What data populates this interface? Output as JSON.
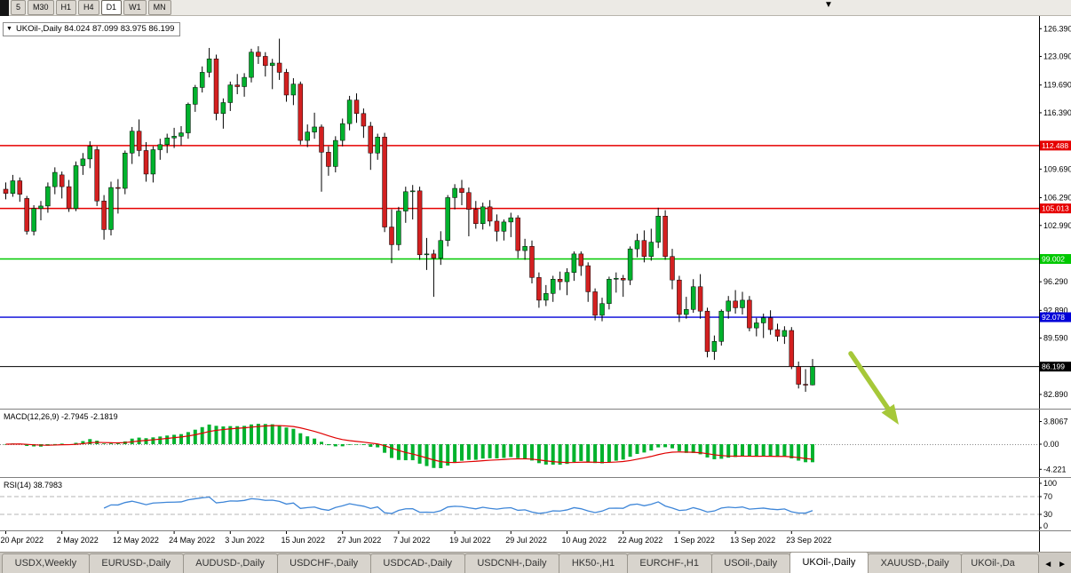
{
  "toolbar": {
    "timeframes": [
      "5",
      "M30",
      "H1",
      "H4",
      "D1",
      "W1",
      "MN"
    ],
    "active_timeframe": "D1",
    "overflow_caret": "▼"
  },
  "chart_header": {
    "caret": "▼",
    "text": "UKOil-,Daily 84.024 87.099 83.975 86.199"
  },
  "chart_data": {
    "type": "candlestick",
    "title": "UKOil-,Daily",
    "ohlc_display": {
      "open": "84.024",
      "high": "87.099",
      "low": "83.975",
      "close": "86.199"
    },
    "price_range": {
      "min": 81.2,
      "max": 127.9
    },
    "y_ticks": [
      126.39,
      123.09,
      119.69,
      116.39,
      109.69,
      106.29,
      102.99,
      96.29,
      92.89,
      89.59,
      82.89
    ],
    "hlines": [
      {
        "price": 112.488,
        "label": "112.488",
        "color": "#E60000"
      },
      {
        "price": 105.013,
        "label": "105.013",
        "color": "#E60000"
      },
      {
        "price": 99.002,
        "label": "99.002",
        "color": "#00C800"
      },
      {
        "price": 92.078,
        "label": "92.078",
        "color": "#0000D8"
      },
      {
        "price": 86.199,
        "label": "86.199",
        "color": "#000000"
      }
    ],
    "x_labels": [
      {
        "label": "20 Apr 2022",
        "index": 0
      },
      {
        "label": "2 May 2022",
        "index": 8
      },
      {
        "label": "12 May 2022",
        "index": 16
      },
      {
        "label": "24 May 2022",
        "index": 24
      },
      {
        "label": "3 Jun 2022",
        "index": 32
      },
      {
        "label": "15 Jun 2022",
        "index": 40
      },
      {
        "label": "27 Jun 2022",
        "index": 48
      },
      {
        "label": "7 Jul 2022",
        "index": 56
      },
      {
        "label": "19 Jul 2022",
        "index": 64
      },
      {
        "label": "29 Jul 2022",
        "index": 72
      },
      {
        "label": "10 Aug 2022",
        "index": 80
      },
      {
        "label": "22 Aug 2022",
        "index": 88
      },
      {
        "label": "1 Sep 2022",
        "index": 96
      },
      {
        "label": "13 Sep 2022",
        "index": 104
      },
      {
        "label": "23 Sep 2022",
        "index": 112
      }
    ],
    "candles": [
      [
        107.3,
        108.1,
        106.1,
        106.8
      ],
      [
        106.8,
        109.0,
        106.4,
        108.3
      ],
      [
        108.3,
        108.7,
        105.8,
        106.7
      ],
      [
        106.2,
        106.5,
        101.9,
        102.3
      ],
      [
        102.3,
        105.4,
        101.8,
        105.0
      ],
      [
        105.0,
        105.9,
        103.6,
        105.3
      ],
      [
        105.3,
        108.1,
        104.5,
        107.6
      ],
      [
        107.6,
        109.9,
        106.7,
        109.3
      ],
      [
        109.0,
        109.4,
        106.2,
        107.6
      ],
      [
        107.6,
        108.4,
        104.6,
        105.0
      ],
      [
        105.0,
        110.6,
        104.7,
        110.1
      ],
      [
        110.1,
        111.6,
        109.0,
        110.9
      ],
      [
        110.9,
        113.0,
        109.8,
        112.4
      ],
      [
        112.0,
        112.4,
        105.3,
        105.9
      ],
      [
        105.9,
        106.6,
        101.3,
        102.5
      ],
      [
        102.5,
        108.2,
        101.8,
        107.5
      ],
      [
        107.5,
        108.5,
        104.4,
        107.4
      ],
      [
        107.4,
        111.9,
        106.7,
        111.6
      ],
      [
        111.6,
        114.7,
        110.3,
        114.2
      ],
      [
        114.2,
        115.6,
        111.2,
        111.9
      ],
      [
        111.9,
        112.9,
        108.2,
        109.1
      ],
      [
        109.1,
        112.4,
        108.1,
        112.0
      ],
      [
        112.0,
        113.3,
        110.8,
        112.6
      ],
      [
        112.6,
        113.9,
        111.6,
        113.4
      ],
      [
        113.4,
        114.6,
        112.2,
        113.6
      ],
      [
        113.6,
        114.8,
        112.5,
        114.0
      ],
      [
        114.0,
        117.6,
        113.3,
        117.4
      ],
      [
        117.4,
        119.7,
        116.5,
        119.4
      ],
      [
        119.4,
        121.9,
        118.8,
        121.2
      ],
      [
        121.2,
        124.1,
        120.6,
        122.8
      ],
      [
        122.8,
        123.3,
        115.5,
        116.3
      ],
      [
        116.3,
        118.1,
        114.5,
        117.6
      ],
      [
        117.6,
        120.1,
        116.6,
        119.7
      ],
      [
        119.7,
        121.0,
        118.6,
        119.5
      ],
      [
        119.5,
        121.1,
        118.3,
        120.6
      ],
      [
        120.6,
        124.0,
        120.0,
        123.6
      ],
      [
        123.6,
        124.3,
        122.2,
        123.1
      ],
      [
        123.1,
        123.6,
        120.7,
        122.0
      ],
      [
        122.0,
        122.8,
        119.2,
        122.3
      ],
      [
        122.3,
        125.2,
        120.3,
        121.2
      ],
      [
        121.2,
        121.6,
        117.7,
        118.5
      ],
      [
        118.5,
        120.5,
        117.3,
        119.8
      ],
      [
        119.8,
        120.1,
        112.6,
        113.1
      ],
      [
        113.1,
        115.0,
        112.3,
        114.1
      ],
      [
        114.1,
        116.4,
        113.3,
        114.7
      ],
      [
        114.7,
        115.0,
        107.0,
        111.7
      ],
      [
        111.7,
        112.4,
        108.9,
        110.0
      ],
      [
        110.0,
        113.6,
        109.3,
        113.1
      ],
      [
        113.1,
        115.7,
        112.4,
        115.1
      ],
      [
        115.1,
        118.4,
        114.3,
        117.9
      ],
      [
        117.9,
        118.7,
        115.2,
        116.3
      ],
      [
        116.3,
        116.9,
        113.4,
        114.8
      ],
      [
        114.8,
        115.3,
        109.6,
        111.6
      ],
      [
        111.6,
        113.9,
        110.8,
        113.5
      ],
      [
        113.5,
        114.0,
        102.2,
        102.8
      ],
      [
        102.8,
        104.9,
        98.5,
        100.7
      ],
      [
        100.7,
        105.2,
        100.0,
        104.7
      ],
      [
        104.7,
        107.6,
        103.3,
        107.0
      ],
      [
        107.0,
        107.8,
        103.7,
        107.1
      ],
      [
        107.1,
        107.6,
        98.9,
        99.5
      ],
      [
        99.5,
        101.5,
        97.7,
        99.6
      ],
      [
        99.6,
        100.1,
        94.5,
        99.1
      ],
      [
        99.1,
        102.3,
        98.3,
        101.2
      ],
      [
        101.2,
        106.6,
        100.5,
        106.3
      ],
      [
        106.3,
        107.9,
        104.9,
        107.4
      ],
      [
        107.4,
        108.4,
        105.4,
        106.9
      ],
      [
        106.9,
        107.5,
        101.7,
        104.9
      ],
      [
        104.9,
        105.9,
        102.6,
        103.2
      ],
      [
        103.2,
        105.7,
        102.5,
        105.2
      ],
      [
        105.2,
        106.0,
        102.9,
        103.5
      ],
      [
        103.5,
        104.3,
        101.1,
        102.3
      ],
      [
        102.3,
        103.7,
        101.2,
        103.4
      ],
      [
        103.4,
        104.5,
        101.6,
        103.9
      ],
      [
        103.9,
        104.2,
        99.1,
        100.0
      ],
      [
        100.0,
        101.4,
        98.9,
        100.5
      ],
      [
        100.5,
        101.2,
        96.1,
        96.8
      ],
      [
        96.8,
        97.4,
        93.2,
        94.1
      ],
      [
        94.1,
        95.9,
        93.4,
        94.9
      ],
      [
        94.9,
        97.0,
        93.9,
        96.6
      ],
      [
        96.6,
        97.5,
        95.3,
        96.3
      ],
      [
        96.3,
        97.9,
        94.7,
        97.4
      ],
      [
        97.4,
        99.9,
        96.4,
        99.6
      ],
      [
        99.6,
        99.9,
        97.0,
        98.2
      ],
      [
        98.2,
        98.6,
        93.9,
        95.1
      ],
      [
        95.1,
        95.5,
        91.7,
        92.3
      ],
      [
        92.3,
        94.4,
        91.6,
        93.7
      ],
      [
        93.7,
        96.9,
        93.0,
        96.6
      ],
      [
        96.6,
        97.4,
        95.0,
        96.7
      ],
      [
        96.7,
        97.1,
        94.5,
        96.5
      ],
      [
        96.5,
        100.5,
        95.9,
        100.2
      ],
      [
        100.2,
        102.0,
        99.2,
        101.2
      ],
      [
        101.2,
        102.4,
        98.6,
        99.3
      ],
      [
        99.3,
        102.6,
        98.8,
        101.0
      ],
      [
        101.0,
        105.1,
        100.3,
        104.1
      ],
      [
        104.1,
        104.8,
        98.9,
        99.3
      ],
      [
        99.3,
        100.2,
        95.4,
        96.5
      ],
      [
        96.5,
        97.0,
        91.5,
        92.4
      ],
      [
        92.4,
        94.5,
        91.9,
        93.0
      ],
      [
        93.0,
        96.6,
        92.6,
        95.7
      ],
      [
        95.7,
        97.2,
        91.9,
        92.8
      ],
      [
        92.8,
        93.2,
        87.3,
        88.0
      ],
      [
        88.0,
        89.9,
        87.0,
        89.2
      ],
      [
        89.2,
        93.0,
        88.7,
        92.8
      ],
      [
        92.8,
        94.6,
        91.9,
        94.0
      ],
      [
        94.0,
        95.3,
        92.5,
        93.2
      ],
      [
        93.2,
        95.1,
        92.4,
        94.1
      ],
      [
        94.1,
        94.6,
        90.4,
        90.8
      ],
      [
        90.8,
        92.0,
        89.8,
        91.4
      ],
      [
        91.4,
        92.5,
        89.6,
        92.0
      ],
      [
        92.0,
        92.9,
        90.0,
        90.6
      ],
      [
        90.6,
        91.3,
        89.2,
        89.8
      ],
      [
        89.8,
        91.0,
        88.9,
        90.5
      ],
      [
        90.5,
        90.9,
        85.9,
        86.2
      ],
      [
        86.2,
        86.8,
        83.6,
        84.1
      ],
      [
        84.1,
        85.9,
        83.2,
        84.0
      ],
      [
        84.024,
        87.099,
        83.975,
        86.199
      ]
    ],
    "colors": {
      "up": "#00B22D",
      "down": "#D32020",
      "wick": "#000000",
      "macd_hist": "#00B22D",
      "macd_signal": "#E00000",
      "rsi_line": "#3E86D8",
      "arrow": "#A6C839"
    }
  },
  "macd": {
    "label": "MACD(12,26,9) -2.7945 -2.1819",
    "values_text": [
      "-2.7945",
      "-2.1819"
    ],
    "axis_labels": [
      {
        "text": "3.8067",
        "value": 3.8067
      },
      {
        "text": "0.00",
        "value": 0
      },
      {
        "text": "-4.221",
        "value": -4.221
      }
    ]
  },
  "rsi": {
    "label": "RSI(14) 38.7983",
    "value_text": "38.7983",
    "levels": [
      70,
      30
    ],
    "axis_labels": [
      {
        "text": "100",
        "value": 100
      },
      {
        "text": "70",
        "value": 70
      },
      {
        "text": "30",
        "value": 30
      },
      {
        "text": "0",
        "value": 0
      }
    ]
  },
  "tabs": {
    "items": [
      {
        "label": "USDX,Weekly",
        "active": false
      },
      {
        "label": "EURUSD-,Daily",
        "active": false
      },
      {
        "label": "AUDUSD-,Daily",
        "active": false
      },
      {
        "label": "USDCHF-,Daily",
        "active": false
      },
      {
        "label": "USDCAD-,Daily",
        "active": false
      },
      {
        "label": "USDCNH-,Daily",
        "active": false
      },
      {
        "label": "HK50-,H1",
        "active": false
      },
      {
        "label": "EURCHF-,H1",
        "active": false
      },
      {
        "label": "USOil-,Daily",
        "active": false
      },
      {
        "label": "UKOil-,Daily",
        "active": true
      },
      {
        "label": "XAUUSD-,Daily",
        "active": false
      },
      {
        "label": "UKOil-,Da",
        "active": false,
        "truncated": true
      }
    ],
    "scroll_left": "◄",
    "scroll_right": "►"
  }
}
